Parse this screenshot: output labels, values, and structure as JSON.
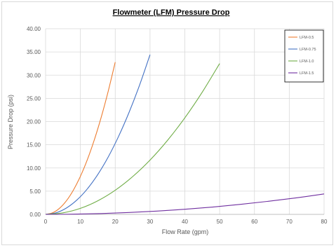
{
  "chart_data": {
    "type": "line",
    "title": "Flowmeter (LFM) Pressure Drop",
    "xlabel": "Flow Rate (gpm)",
    "ylabel": "Pressure Drop (psi)",
    "xlim": [
      0,
      80
    ],
    "ylim": [
      0,
      40
    ],
    "x_ticks": [
      "0",
      "10",
      "20",
      "30",
      "40",
      "50",
      "60",
      "70",
      "80"
    ],
    "y_ticks": [
      "0.00",
      "5.00",
      "10.00",
      "15.00",
      "20.00",
      "25.00",
      "30.00",
      "35.00",
      "40.00"
    ],
    "grid": true,
    "legend_position": "top-right",
    "series": [
      {
        "name": "LFM-0.5",
        "color": "#ed7d31",
        "x": [
          0,
          2,
          4,
          6,
          8,
          10,
          12,
          14,
          16,
          18,
          20
        ],
        "y": [
          0,
          0.33,
          1.31,
          2.95,
          5.25,
          8.2,
          11.8,
          16.07,
          20.99,
          26.57,
          32.8
        ]
      },
      {
        "name": "LFM-0.75",
        "color": "#4472c4",
        "x": [
          0,
          3,
          6,
          9,
          12,
          15,
          18,
          21,
          24,
          27,
          30
        ],
        "y": [
          0,
          0.34,
          1.38,
          3.1,
          5.5,
          8.6,
          12.38,
          16.86,
          22.02,
          27.86,
          34.4
        ]
      },
      {
        "name": "LFM-1.0",
        "color": "#70ad47",
        "x": [
          0,
          5,
          10,
          15,
          20,
          25,
          30,
          35,
          40,
          45,
          50
        ],
        "y": [
          0,
          0.33,
          1.3,
          2.93,
          5.2,
          8.13,
          11.7,
          15.93,
          20.8,
          26.33,
          32.5
        ]
      },
      {
        "name": "LFM-1.5",
        "color": "#7030a0",
        "x": [
          0,
          8,
          16,
          24,
          32,
          40,
          48,
          56,
          64,
          72,
          80
        ],
        "y": [
          0,
          0.04,
          0.18,
          0.4,
          0.71,
          1.1,
          1.58,
          2.16,
          2.82,
          3.56,
          4.4
        ]
      }
    ]
  }
}
